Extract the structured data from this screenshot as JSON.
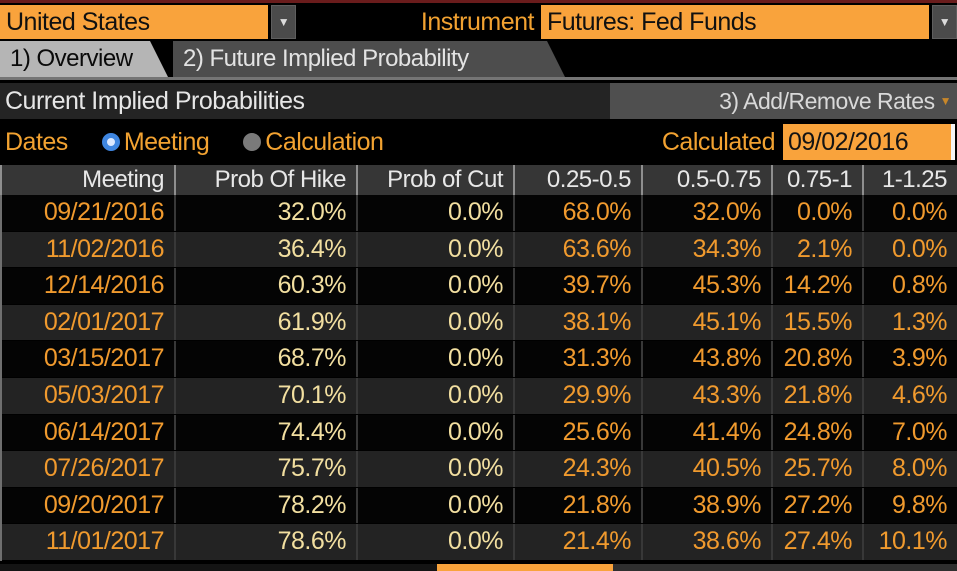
{
  "topbar": {
    "country": "United States",
    "instrument_label": "Instrument",
    "instrument_value": "Futures: Fed Funds",
    "dropdown_glyph": "▼"
  },
  "tabs": [
    {
      "label": "1) Overview",
      "active": true
    },
    {
      "label": "2) Future Implied Probability",
      "active": false
    }
  ],
  "title": "Current Implied Probabilities",
  "add_remove_button": {
    "label": "3) Add/Remove Rates",
    "glyph": "▼"
  },
  "dates_row": {
    "label": "Dates",
    "options": [
      {
        "label": "Meeting",
        "selected": true
      },
      {
        "label": "Calculation",
        "selected": false
      }
    ],
    "calculated_label": "Calculated",
    "calculated_date": "09/02/2016"
  },
  "table": {
    "columns": [
      "Meeting",
      "Prob Of Hike",
      "Prob of Cut",
      "0.25-0.5",
      "0.5-0.75",
      "0.75-1",
      "1-1.25"
    ],
    "rows": [
      [
        "09/21/2016",
        "32.0%",
        "0.0%",
        "68.0%",
        "32.0%",
        "0.0%",
        "0.0%"
      ],
      [
        "11/02/2016",
        "36.4%",
        "0.0%",
        "63.6%",
        "34.3%",
        "2.1%",
        "0.0%"
      ],
      [
        "12/14/2016",
        "60.3%",
        "0.0%",
        "39.7%",
        "45.3%",
        "14.2%",
        "0.8%"
      ],
      [
        "02/01/2017",
        "61.9%",
        "0.0%",
        "38.1%",
        "45.1%",
        "15.5%",
        "1.3%"
      ],
      [
        "03/15/2017",
        "68.7%",
        "0.0%",
        "31.3%",
        "43.8%",
        "20.8%",
        "3.9%"
      ],
      [
        "05/03/2017",
        "70.1%",
        "0.0%",
        "29.9%",
        "43.3%",
        "21.8%",
        "4.6%"
      ],
      [
        "06/14/2017",
        "74.4%",
        "0.0%",
        "25.6%",
        "41.4%",
        "24.8%",
        "7.0%"
      ],
      [
        "07/26/2017",
        "75.7%",
        "0.0%",
        "24.3%",
        "40.5%",
        "25.7%",
        "8.0%"
      ],
      [
        "09/20/2017",
        "78.2%",
        "0.0%",
        "21.8%",
        "38.9%",
        "27.2%",
        "9.8%"
      ],
      [
        "11/01/2017",
        "78.6%",
        "0.0%",
        "21.4%",
        "38.6%",
        "27.4%",
        "10.1%"
      ]
    ]
  },
  "colors": {
    "accent_orange": "#f9a33c",
    "label_orange": "#f2a231",
    "value_orange": "#f09a2e",
    "value_pale_yellow": "#f2dfa0",
    "radio_blue": "#3f86e0",
    "tab_active_bg": "#b5b5b5",
    "tab_inactive_bg": "#4d4d4d",
    "header_bg": "#363636",
    "row_alt_bg": "#232323",
    "topline_maroon": "#6a1c1c"
  }
}
